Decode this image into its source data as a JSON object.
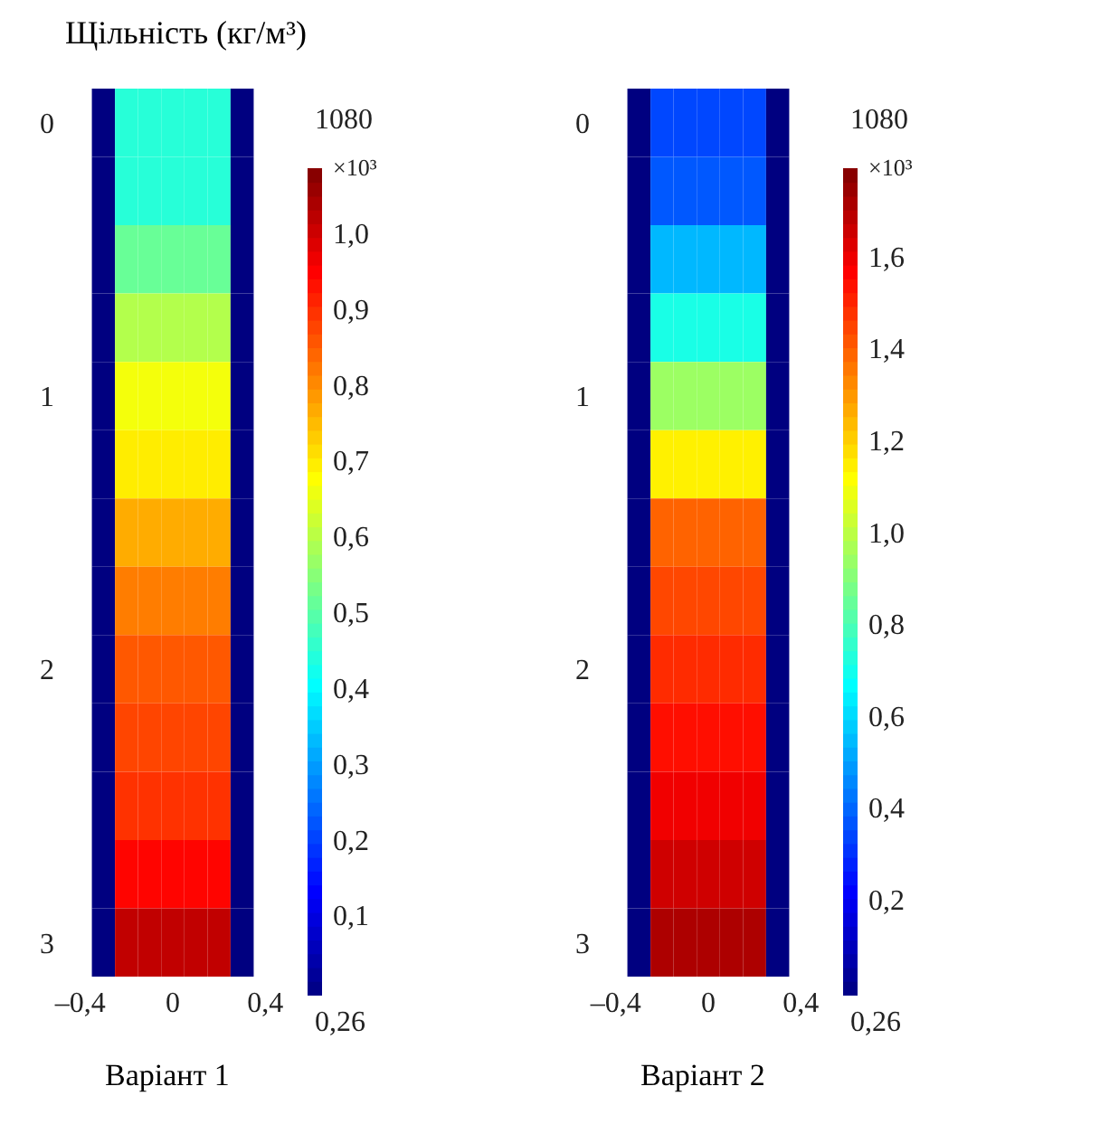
{
  "chart_data": [
    {
      "type": "heatmap",
      "title": "Щільність (кг/м³)",
      "xlabel": "Варіант 1",
      "clabel": "×10³",
      "annotations": [
        "1080",
        "0,26"
      ],
      "categories": [
        "–0,4",
        null,
        null,
        null,
        "0",
        null,
        null,
        null,
        "0,4"
      ],
      "y_categories": [
        "0",
        null,
        null,
        null,
        "1",
        null,
        null,
        null,
        "2",
        null,
        null,
        null,
        "3"
      ],
      "clim": [
        0,
        1.09
      ],
      "cticks": [
        {
          "value": 0.1,
          "label": "0,1"
        },
        {
          "value": 0.2,
          "label": "0,2"
        },
        {
          "value": 0.3,
          "label": "0,3"
        },
        {
          "value": 0.4,
          "label": "0,4"
        },
        {
          "value": 0.5,
          "label": "0,5"
        },
        {
          "value": 0.6,
          "label": "0,6"
        },
        {
          "value": 0.7,
          "label": "0,7"
        },
        {
          "value": 0.8,
          "label": "0,8"
        },
        {
          "value": 0.9,
          "label": "0,9"
        },
        {
          "value": 1.0,
          "label": "1,0"
        }
      ],
      "cells": [
        [
          null,
          0,
          0.45,
          0.45,
          0.45,
          0.45,
          0.45,
          0,
          null
        ],
        [
          null,
          0,
          0.45,
          0.45,
          0.45,
          0.45,
          0.45,
          0,
          null
        ],
        [
          null,
          0,
          0.52,
          0.52,
          0.52,
          0.52,
          0.52,
          0,
          null
        ],
        [
          null,
          0,
          0.6,
          0.6,
          0.6,
          0.6,
          0.6,
          0,
          null
        ],
        [
          null,
          0,
          0.67,
          0.67,
          0.67,
          0.67,
          0.67,
          0,
          null
        ],
        [
          null,
          0,
          0.7,
          0.7,
          0.7,
          0.7,
          0.7,
          0,
          null
        ],
        [
          null,
          0,
          0.77,
          0.77,
          0.77,
          0.77,
          0.77,
          0,
          null
        ],
        [
          null,
          0,
          0.82,
          0.82,
          0.82,
          0.82,
          0.82,
          0,
          null
        ],
        [
          null,
          0,
          0.86,
          0.86,
          0.86,
          0.86,
          0.86,
          0,
          null
        ],
        [
          null,
          0,
          0.88,
          0.88,
          0.88,
          0.88,
          0.88,
          0,
          null
        ],
        [
          null,
          0,
          0.9,
          0.9,
          0.9,
          0.9,
          0.9,
          0,
          null
        ],
        [
          null,
          0,
          0.95,
          0.95,
          0.95,
          0.95,
          0.95,
          0,
          null
        ],
        [
          null,
          0,
          1.02,
          1.02,
          1.02,
          1.02,
          1.02,
          0,
          null
        ]
      ]
    },
    {
      "type": "heatmap",
      "xlabel": "Варіант 2",
      "clabel": "×10³",
      "annotations": [
        "1080",
        "0,26"
      ],
      "categories": [
        "–0,4",
        null,
        null,
        null,
        "0",
        null,
        null,
        null,
        "0,4"
      ],
      "y_categories": [
        "0",
        null,
        null,
        null,
        "1",
        null,
        null,
        null,
        "2",
        null,
        null,
        null,
        "3"
      ],
      "clim": [
        0,
        1.8
      ],
      "cticks": [
        {
          "value": 0.2,
          "label": "0,2"
        },
        {
          "value": 0.4,
          "label": "0,4"
        },
        {
          "value": 0.6,
          "label": "0,6"
        },
        {
          "value": 0.8,
          "label": "0,8"
        },
        {
          "value": 1.0,
          "label": "1,0"
        },
        {
          "value": 1.2,
          "label": "1,2"
        },
        {
          "value": 1.4,
          "label": "1,4"
        },
        {
          "value": 1.6,
          "label": "1,6"
        }
      ],
      "cells": [
        [
          null,
          0,
          0.35,
          0.35,
          0.35,
          0.35,
          0.35,
          0,
          null
        ],
        [
          null,
          0,
          0.38,
          0.38,
          0.38,
          0.38,
          0.38,
          0,
          null
        ],
        [
          null,
          0,
          0.55,
          0.55,
          0.55,
          0.55,
          0.55,
          0,
          null
        ],
        [
          null,
          0,
          0.72,
          0.72,
          0.72,
          0.72,
          0.72,
          0,
          null
        ],
        [
          null,
          0,
          0.95,
          0.95,
          0.95,
          0.95,
          0.95,
          0,
          null
        ],
        [
          null,
          0,
          1.15,
          1.15,
          1.15,
          1.15,
          1.15,
          0,
          null
        ],
        [
          null,
          0,
          1.4,
          1.4,
          1.4,
          1.4,
          1.4,
          0,
          null
        ],
        [
          null,
          0,
          1.45,
          1.45,
          1.45,
          1.45,
          1.45,
          0,
          null
        ],
        [
          null,
          0,
          1.5,
          1.5,
          1.5,
          1.5,
          1.5,
          0,
          null
        ],
        [
          null,
          0,
          1.55,
          1.55,
          1.55,
          1.55,
          1.55,
          0,
          null
        ],
        [
          null,
          0,
          1.6,
          1.6,
          1.6,
          1.6,
          1.6,
          0,
          null
        ],
        [
          null,
          0,
          1.66,
          1.66,
          1.66,
          1.66,
          1.66,
          0,
          null
        ],
        [
          null,
          0,
          1.72,
          1.72,
          1.72,
          1.72,
          1.72,
          0,
          null
        ]
      ]
    }
  ]
}
